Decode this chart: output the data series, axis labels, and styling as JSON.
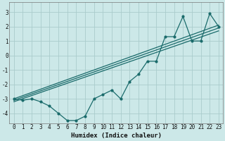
{
  "xlabel": "Humidex (Indice chaleur)",
  "background_color": "#cce8e8",
  "grid_color": "#aacccc",
  "line_color": "#1a6b6b",
  "xlim": [
    -0.5,
    23.5
  ],
  "ylim": [
    -4.7,
    3.7
  ],
  "yticks": [
    -4,
    -3,
    -2,
    -1,
    0,
    1,
    2,
    3
  ],
  "xticks": [
    0,
    1,
    2,
    3,
    4,
    5,
    6,
    7,
    8,
    9,
    10,
    11,
    12,
    13,
    14,
    15,
    16,
    17,
    18,
    19,
    20,
    21,
    22,
    23
  ],
  "zigzag_x": [
    0,
    1,
    2,
    3,
    4,
    5,
    6,
    7,
    8,
    9,
    10,
    11,
    12,
    13,
    14,
    15,
    16,
    17,
    18,
    19,
    20,
    21,
    22,
    23
  ],
  "zigzag_y": [
    -3.0,
    -3.1,
    -3.0,
    -3.2,
    -3.5,
    -4.0,
    -4.5,
    -4.5,
    -4.2,
    -3.0,
    -2.7,
    -2.4,
    -3.0,
    -1.8,
    -1.3,
    -0.4,
    -0.4,
    1.3,
    1.3,
    2.7,
    1.0,
    1.0,
    2.9,
    2.0
  ],
  "line1_x": [
    0,
    23
  ],
  "line1_y": [
    -3.1,
    1.9
  ],
  "line2_x": [
    0,
    23
  ],
  "line2_y": [
    -3.0,
    2.1
  ],
  "line3_x": [
    0,
    23
  ],
  "line3_y": [
    -3.2,
    1.7
  ]
}
